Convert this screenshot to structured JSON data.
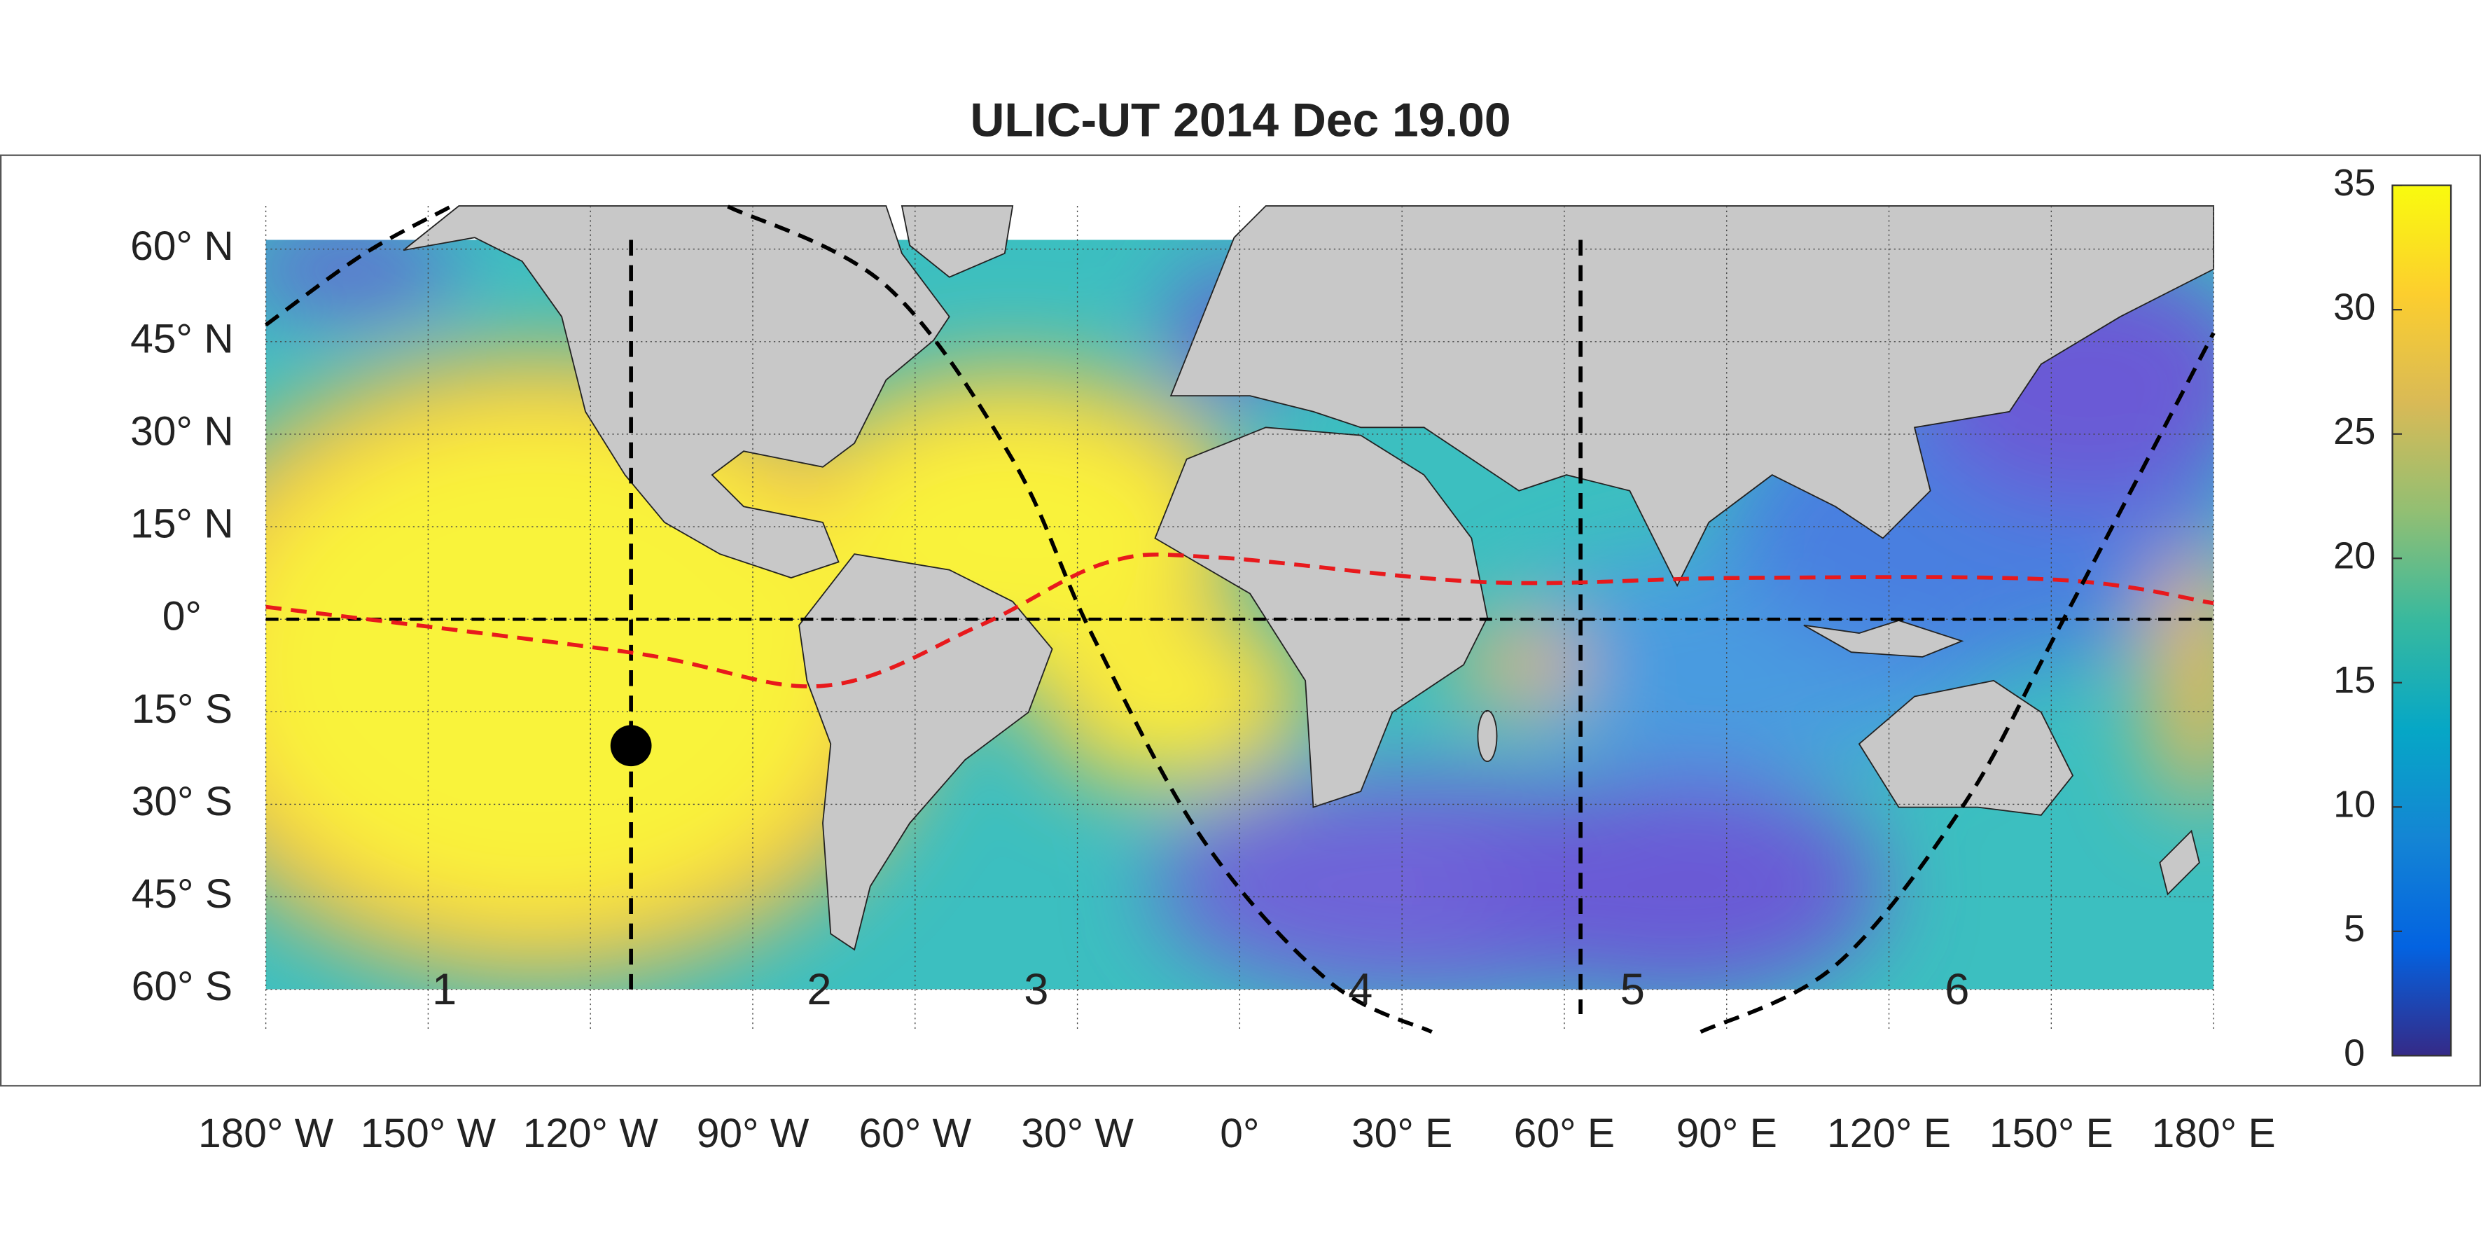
{
  "chart_data": {
    "type": "map",
    "title": "ULIC-UT 2014 Dec 19.00",
    "xlim": [
      -180,
      180
    ],
    "ylim": [
      -66.9,
      67
    ],
    "xticks": [
      {
        "value": -180,
        "label": "180° W"
      },
      {
        "value": -150,
        "label": "150° W"
      },
      {
        "value": -120,
        "label": "120° W"
      },
      {
        "value": -90,
        "label": "90° W"
      },
      {
        "value": -60,
        "label": "60° W"
      },
      {
        "value": -30,
        "label": "30° W"
      },
      {
        "value": 0,
        "label": "0°"
      },
      {
        "value": 30,
        "label": "30° E"
      },
      {
        "value": 60,
        "label": "60° E"
      },
      {
        "value": 90,
        "label": "90° E"
      },
      {
        "value": 120,
        "label": "120° E"
      },
      {
        "value": 150,
        "label": "150° E"
      },
      {
        "value": 180,
        "label": "180° E"
      }
    ],
    "yticks": [
      {
        "value": 60,
        "label": "60° N"
      },
      {
        "value": 45,
        "label": "45° N"
      },
      {
        "value": 30,
        "label": "30° N"
      },
      {
        "value": 15,
        "label": "15° N"
      },
      {
        "value": 0,
        "label": "0°"
      },
      {
        "value": -15,
        "label": "15° S"
      },
      {
        "value": -30,
        "label": "30° S"
      },
      {
        "value": -45,
        "label": "45° S"
      },
      {
        "value": -60,
        "label": "60° S"
      }
    ],
    "grid": true,
    "data_lat_range": [
      -60,
      61.5
    ],
    "colorbar": {
      "lim": [
        0,
        35
      ],
      "ticks": [
        0,
        5,
        10,
        15,
        20,
        25,
        30,
        35
      ]
    },
    "meridians": [
      {
        "lon": -112.5,
        "lat": [
          61.5,
          -60
        ]
      },
      {
        "lon": 63,
        "lat": [
          61.5,
          -64
        ]
      }
    ],
    "curves": [
      {
        "color": "#e8191c",
        "x": [
          -180,
          -112.5,
          -77,
          -48,
          -24.5,
          -4,
          45.7,
          92.5,
          151,
          180
        ],
        "y": [
          2,
          -5.4,
          -10.8,
          -1,
          9.2,
          10,
          6,
          6.7,
          6.4,
          2.6
        ]
      },
      {
        "color": "#000000",
        "x": [
          -180,
          -161.9,
          -145.8
        ],
        "y": [
          47.7,
          59.2,
          66.9
        ]
      },
      {
        "color": "#000000",
        "x": [
          -94.6,
          -65.4,
          -42,
          -27.4,
          -6.9,
          16.5,
          35.5
        ],
        "y": [
          66.9,
          54.1,
          25.9,
          -2.3,
          -35.6,
          -58.7,
          -66.9
        ]
      },
      {
        "color": "#000000",
        "x": [
          85.2,
          110,
          133.5,
          150.9,
          180
        ],
        "y": [
          -66.9,
          -56.2,
          -30.5,
          -2.3,
          46.4
        ]
      }
    ],
    "marker": {
      "x": -112.5,
      "y": -20.5,
      "color": "#000000"
    },
    "regions": [
      {
        "label": "1",
        "x": -147
      },
      {
        "label": "2",
        "x": -77.7
      },
      {
        "label": "3",
        "x": -37.6
      },
      {
        "label": "4",
        "x": 22.3
      },
      {
        "label": "5",
        "x": 72.6
      },
      {
        "label": "6",
        "x": 132.6
      }
    ]
  }
}
